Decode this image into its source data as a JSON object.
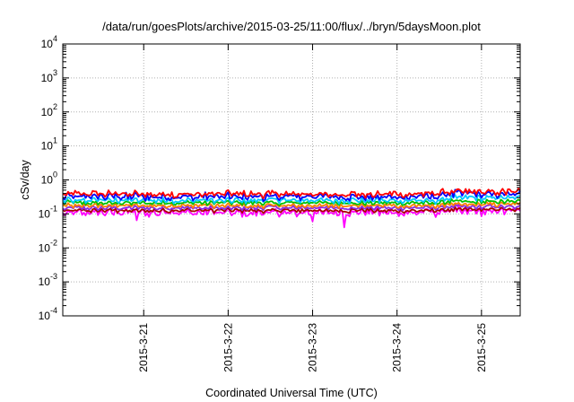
{
  "chart_data": {
    "type": "line",
    "title": "/data/run/goesPlots/archive/2015-03-25/11:00/flux/../bryn/5daysMoon.plot",
    "xlabel": "Coordinated Universal Time (UTC)",
    "ylabel": "cSv/day",
    "yscale": "log",
    "ylim": [
      0.0001,
      10000
    ],
    "y_tick_labels": [
      {
        "base": "10",
        "exp": "-4"
      },
      {
        "base": "10",
        "exp": "-3"
      },
      {
        "base": "10",
        "exp": "-2"
      },
      {
        "base": "10",
        "exp": "-1"
      },
      {
        "base": "10",
        "exp": "0"
      },
      {
        "base": "10",
        "exp": "1"
      },
      {
        "base": "10",
        "exp": "2"
      },
      {
        "base": "10",
        "exp": "3"
      },
      {
        "base": "10",
        "exp": "4"
      }
    ],
    "xlim": [
      "2015-03-20 01:00",
      "2015-03-25 11:00"
    ],
    "x_ticks": [
      {
        "date": "2015-03-21",
        "label": "2015-3-21"
      },
      {
        "date": "2015-03-22",
        "label": "2015-3-22"
      },
      {
        "date": "2015-03-23",
        "label": "2015-3-23"
      },
      {
        "date": "2015-03-24",
        "label": "2015-3-24"
      },
      {
        "date": "2015-03-25",
        "label": "2015-3-25"
      }
    ],
    "grid": true,
    "legend": "none",
    "notable_dips": [
      {
        "date": "2015-03-23 00:00",
        "value": 0.06
      },
      {
        "date": "2015-03-23 09:00",
        "value": 0.04
      },
      {
        "date": "2015-03-20 22:00",
        "value": 0.065
      }
    ],
    "series": [
      {
        "color": "#ff0000",
        "level_before": 0.38,
        "level_after": 0.44,
        "step_date": "2015-03-24 13:00",
        "noise": 0.22
      },
      {
        "color": "#0000ff",
        "level_before": 0.32,
        "level_after": 0.38,
        "step_date": "2015-03-24 13:00",
        "noise": 0.24
      },
      {
        "color": "#00c8ff",
        "level_before": 0.25,
        "level_after": 0.29,
        "step_date": "2015-03-24 13:00",
        "noise": 0.18
      },
      {
        "color": "#00c000",
        "level_before": 0.21,
        "level_after": 0.23,
        "step_date": "2015-03-24 13:00",
        "noise": 0.14
      },
      {
        "color": "#ff8000",
        "level_before": 0.175,
        "level_after": 0.19,
        "step_date": "2015-03-24 13:00",
        "noise": 0.14
      },
      {
        "color": "#8a2be2",
        "level_before": 0.15,
        "level_after": 0.16,
        "step_date": "2015-03-24 13:00",
        "noise": 0.14
      },
      {
        "color": "#aa0000",
        "level_before": 0.125,
        "level_after": 0.135,
        "step_date": "2015-03-24 13:00",
        "noise": 0.14
      },
      {
        "color": "#ff00ff",
        "level_before": 0.11,
        "level_after": 0.12,
        "step_date": "2015-03-24 13:00",
        "noise": 0.26
      }
    ]
  }
}
